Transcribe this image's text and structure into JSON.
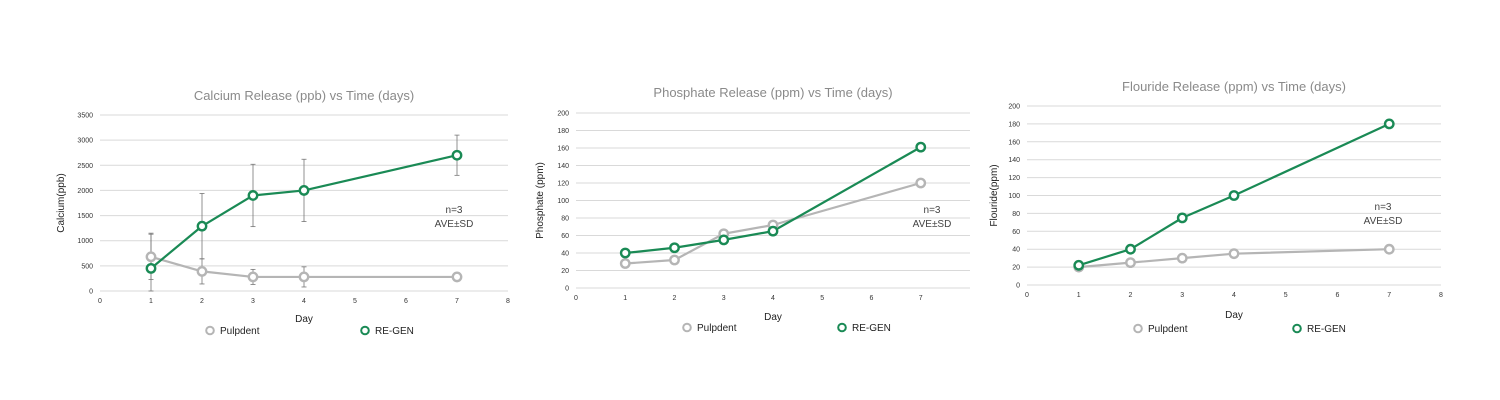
{
  "colors": {
    "re_gen": "#1a8a55",
    "pulpdent": "#b5b5b5",
    "grid": "#d9d9d9",
    "errorbar": "#777777"
  },
  "chart_data": [
    {
      "type": "line",
      "title": "Calcium Release (ppb) vs Time (days)",
      "xlabel": "Day",
      "ylabel": "Calcium(ppb)",
      "xlim": [
        0,
        8
      ],
      "ylim": [
        0,
        3500
      ],
      "x_ticks": [
        0,
        1,
        2,
        3,
        4,
        5,
        6,
        7,
        8
      ],
      "y_ticks": [
        0,
        500,
        1000,
        1500,
        2000,
        2500,
        3000,
        3500
      ],
      "grid": "horizontal",
      "legend_position": "bottom",
      "annotation": [
        "n=3",
        "AVE±SD"
      ],
      "series": [
        {
          "name": "Pulpdent",
          "color": "#b5b5b5",
          "x": [
            1,
            2,
            3,
            4,
            7
          ],
          "y": [
            680,
            390,
            280,
            280,
            280
          ],
          "err": [
            450,
            250,
            150,
            200,
            0
          ]
        },
        {
          "name": "RE-GEN",
          "color": "#1a8a55",
          "x": [
            1,
            2,
            3,
            4,
            7
          ],
          "y": [
            450,
            1290,
            1900,
            2000,
            2700
          ],
          "err": [
            700,
            650,
            620,
            620,
            400
          ]
        }
      ]
    },
    {
      "type": "line",
      "title": "Phosphate Release (ppm) vs Time (days)",
      "xlabel": "Day",
      "ylabel": "Phosphate (ppm)",
      "xlim": [
        0,
        8
      ],
      "ylim": [
        0,
        200
      ],
      "x_ticks": [
        0,
        1,
        2,
        3,
        4,
        5,
        6,
        7
      ],
      "y_ticks": [
        0,
        20,
        40,
        60,
        80,
        100,
        120,
        140,
        160,
        180,
        200
      ],
      "grid": "horizontal",
      "legend_position": "bottom",
      "annotation": [
        "n=3",
        "AVE±SD"
      ],
      "series": [
        {
          "name": "Pulpdent",
          "color": "#b5b5b5",
          "x": [
            1,
            2,
            3,
            4,
            7
          ],
          "y": [
            28,
            32,
            62,
            72,
            120
          ]
        },
        {
          "name": "RE-GEN",
          "color": "#1a8a55",
          "x": [
            1,
            2,
            3,
            4,
            7
          ],
          "y": [
            40,
            46,
            55,
            65,
            161
          ]
        }
      ]
    },
    {
      "type": "line",
      "title": "Flouride Release (ppm) vs Time (days)",
      "xlabel": "Day",
      "ylabel": "Flouride(ppm)",
      "xlim": [
        0,
        8
      ],
      "ylim": [
        0,
        200
      ],
      "x_ticks": [
        0,
        1,
        2,
        3,
        4,
        5,
        6,
        7,
        8
      ],
      "y_ticks": [
        0,
        20,
        40,
        60,
        80,
        100,
        120,
        140,
        160,
        180,
        200
      ],
      "grid": "horizontal",
      "legend_position": "bottom",
      "annotation": [
        "n=3",
        "AVE±SD"
      ],
      "series": [
        {
          "name": "Pulpdent",
          "color": "#b5b5b5",
          "x": [
            1,
            2,
            3,
            4,
            7
          ],
          "y": [
            20,
            25,
            30,
            35,
            40
          ]
        },
        {
          "name": "RE-GEN",
          "color": "#1a8a55",
          "x": [
            1,
            2,
            3,
            4,
            7
          ],
          "y": [
            22,
            40,
            75,
            100,
            180
          ]
        }
      ]
    }
  ]
}
